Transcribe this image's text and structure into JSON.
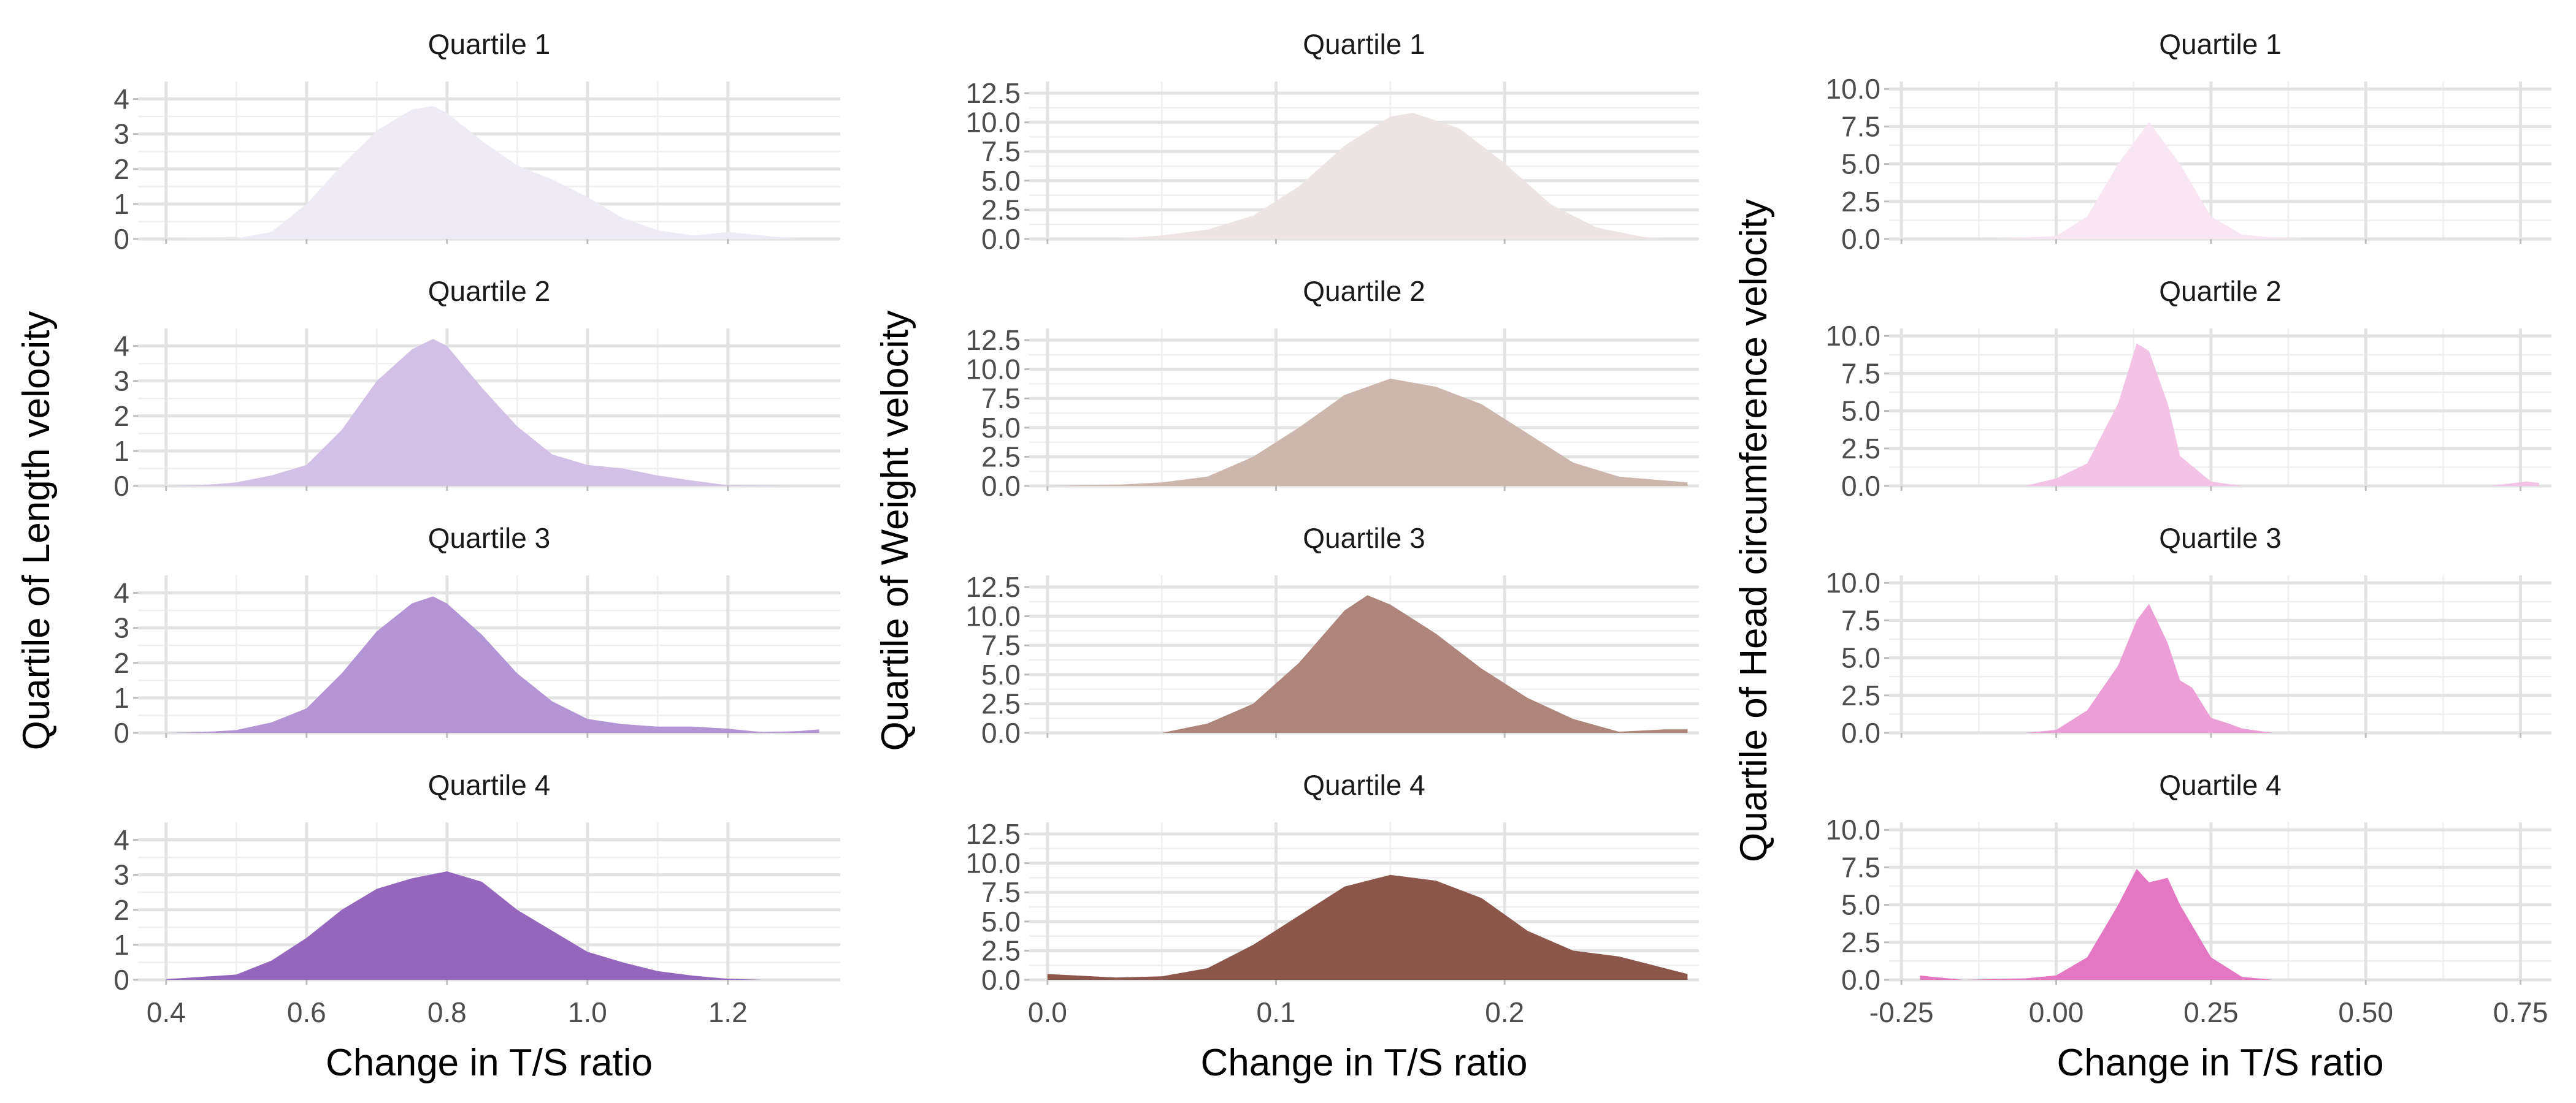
{
  "chart_data": [
    {
      "type": "area",
      "ylabel": "Quartile of Length velocity",
      "xlabel": "Change in T/S ratio",
      "xlim": [
        0.36,
        1.36
      ],
      "ylim": [
        0,
        4.5
      ],
      "xticks": [
        0.4,
        0.6,
        0.8,
        1.0,
        1.2
      ],
      "xtick_labels": [
        "0.4",
        "0.6",
        "0.8",
        "1.0",
        "1.2"
      ],
      "yticks": [
        0,
        1,
        2,
        3,
        4
      ],
      "ytick_labels": [
        "0",
        "1",
        "2",
        "3",
        "4"
      ],
      "grid": true,
      "legend": "none",
      "panels": [
        {
          "name": "Quartile 1",
          "color": "#efebf5",
          "x": [
            0.4,
            0.5,
            0.55,
            0.6,
            0.65,
            0.7,
            0.75,
            0.78,
            0.8,
            0.85,
            0.9,
            0.95,
            1.0,
            1.05,
            1.1,
            1.15,
            1.2,
            1.3
          ],
          "y": [
            0,
            0.02,
            0.2,
            1.0,
            2.1,
            3.1,
            3.7,
            3.8,
            3.6,
            2.8,
            2.1,
            1.7,
            1.2,
            0.6,
            0.25,
            0.1,
            0.2,
            0
          ]
        },
        {
          "name": "Quartile 2",
          "color": "#d2c0e6",
          "x": [
            0.4,
            0.45,
            0.5,
            0.55,
            0.6,
            0.65,
            0.7,
            0.75,
            0.78,
            0.8,
            0.85,
            0.9,
            0.95,
            1.0,
            1.05,
            1.1,
            1.15,
            1.2,
            1.3
          ],
          "y": [
            0,
            0.02,
            0.1,
            0.3,
            0.6,
            1.6,
            3.0,
            3.9,
            4.2,
            4.0,
            2.8,
            1.7,
            0.9,
            0.6,
            0.5,
            0.3,
            0.15,
            0.02,
            0
          ]
        },
        {
          "name": "Quartile 3",
          "color": "#b395d6",
          "x": [
            0.4,
            0.45,
            0.5,
            0.55,
            0.6,
            0.65,
            0.7,
            0.75,
            0.78,
            0.8,
            0.85,
            0.9,
            0.95,
            1.0,
            1.05,
            1.1,
            1.15,
            1.2,
            1.25,
            1.3,
            1.33
          ],
          "y": [
            0,
            0.02,
            0.08,
            0.3,
            0.7,
            1.7,
            2.9,
            3.7,
            3.9,
            3.7,
            2.8,
            1.7,
            0.9,
            0.4,
            0.25,
            0.18,
            0.18,
            0.12,
            0.02,
            0.05,
            0.1
          ]
        },
        {
          "name": "Quartile 4",
          "color": "#9467bd",
          "x": [
            0.4,
            0.5,
            0.55,
            0.6,
            0.65,
            0.7,
            0.75,
            0.8,
            0.85,
            0.9,
            0.95,
            1.0,
            1.05,
            1.1,
            1.15,
            1.2,
            1.25
          ],
          "y": [
            0.02,
            0.15,
            0.55,
            1.2,
            2.0,
            2.6,
            2.9,
            3.1,
            2.8,
            2.0,
            1.4,
            0.8,
            0.5,
            0.25,
            0.12,
            0.03,
            0
          ]
        }
      ]
    },
    {
      "type": "area",
      "ylabel": "Quartile of Weight velocity",
      "xlabel": "Change in T/S ratio",
      "xlim": [
        -0.008,
        0.285
      ],
      "ylim": [
        0,
        13.5
      ],
      "xticks": [
        0.0,
        0.1,
        0.2
      ],
      "xtick_labels": [
        "0.0",
        "0.1",
        "0.2"
      ],
      "yticks": [
        0,
        2.5,
        5,
        7.5,
        10,
        12.5
      ],
      "ytick_labels": [
        "0.0",
        "2.5",
        "5.0",
        "7.5",
        "10.0",
        "12.5"
      ],
      "grid": true,
      "legend": "none",
      "panels": [
        {
          "name": "Quartile 1",
          "color": "#ece5e3",
          "x": [
            0.03,
            0.05,
            0.07,
            0.09,
            0.11,
            0.13,
            0.15,
            0.16,
            0.18,
            0.2,
            0.22,
            0.24,
            0.26,
            0.27
          ],
          "y": [
            0,
            0.3,
            0.8,
            2.0,
            4.5,
            8.0,
            10.5,
            10.8,
            9.5,
            6.5,
            3.0,
            1.0,
            0.2,
            0
          ]
        },
        {
          "name": "Quartile 2",
          "color": "#cdb6ae",
          "x": [
            0.0,
            0.03,
            0.05,
            0.07,
            0.09,
            0.11,
            0.13,
            0.15,
            0.17,
            0.19,
            0.21,
            0.23,
            0.25,
            0.28
          ],
          "y": [
            0,
            0.1,
            0.3,
            0.8,
            2.5,
            5.0,
            7.8,
            9.2,
            8.5,
            7.0,
            4.5,
            2.0,
            0.8,
            0.3
          ]
        },
        {
          "name": "Quartile 3",
          "color": "#ad857b",
          "x": [
            0.05,
            0.07,
            0.09,
            0.11,
            0.13,
            0.14,
            0.15,
            0.17,
            0.19,
            0.21,
            0.23,
            0.25,
            0.27,
            0.28
          ],
          "y": [
            0,
            0.8,
            2.5,
            6.0,
            10.5,
            11.8,
            11.0,
            8.5,
            5.5,
            3.0,
            1.2,
            0.1,
            0.3,
            0.3
          ]
        },
        {
          "name": "Quartile 4",
          "color": "#8c564b",
          "x": [
            0.0,
            0.03,
            0.05,
            0.07,
            0.09,
            0.11,
            0.13,
            0.15,
            0.17,
            0.19,
            0.21,
            0.23,
            0.25,
            0.28
          ],
          "y": [
            0.5,
            0.2,
            0.3,
            1.0,
            3.0,
            5.5,
            8.0,
            9.0,
            8.5,
            7.0,
            4.2,
            2.5,
            2.0,
            0.5
          ]
        }
      ]
    },
    {
      "type": "area",
      "ylabel": "Quartile of Head circumference velocity",
      "xlabel": "Change in T/S ratio",
      "xlim": [
        -0.27,
        0.8
      ],
      "ylim": [
        0,
        10.5
      ],
      "xticks": [
        -0.25,
        0.0,
        0.25,
        0.5,
        0.75
      ],
      "xtick_labels": [
        "-0.25",
        "0.00",
        "0.25",
        "0.50",
        "0.75"
      ],
      "yticks": [
        0,
        2.5,
        5,
        7.5,
        10
      ],
      "ytick_labels": [
        "0.0",
        "2.5",
        "5.0",
        "7.5",
        "10.0"
      ],
      "grid": true,
      "legend": "none",
      "panels": [
        {
          "name": "Quartile 1",
          "color": "#f9e6f3",
          "x": [
            -0.1,
            0.0,
            0.05,
            0.1,
            0.15,
            0.2,
            0.25,
            0.3,
            0.35,
            0.4
          ],
          "y": [
            0,
            0.2,
            1.5,
            5.0,
            7.8,
            5.0,
            1.5,
            0.3,
            0.1,
            0
          ]
        },
        {
          "name": "Quartile 2",
          "color": "#f3c3e5",
          "x": [
            -0.05,
            0.0,
            0.05,
            0.1,
            0.13,
            0.15,
            0.18,
            0.2,
            0.25,
            0.3,
            0.6,
            0.7,
            0.76,
            0.78
          ],
          "y": [
            0,
            0.5,
            1.5,
            5.5,
            9.5,
            9.0,
            5.5,
            2.0,
            0.3,
            0,
            0,
            0,
            0.3,
            0.2
          ]
        },
        {
          "name": "Quartile 3",
          "color": "#ec9fd7",
          "x": [
            -0.05,
            0.0,
            0.05,
            0.1,
            0.13,
            0.15,
            0.18,
            0.2,
            0.22,
            0.25,
            0.28,
            0.3,
            0.35
          ],
          "y": [
            0,
            0.2,
            1.5,
            4.5,
            7.5,
            8.6,
            6.0,
            3.5,
            3.0,
            1.0,
            0.6,
            0.3,
            0
          ]
        },
        {
          "name": "Quartile 4",
          "color": "#e377c2",
          "x": [
            -0.22,
            -0.2,
            -0.15,
            -0.05,
            0.0,
            0.05,
            0.1,
            0.13,
            0.15,
            0.18,
            0.2,
            0.25,
            0.3,
            0.35
          ],
          "y": [
            0.3,
            0.2,
            0,
            0.1,
            0.3,
            1.5,
            5.0,
            7.4,
            6.5,
            6.8,
            5.0,
            1.5,
            0.2,
            0
          ]
        }
      ]
    }
  ]
}
